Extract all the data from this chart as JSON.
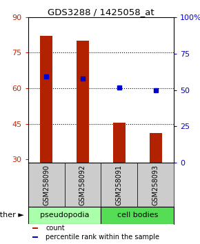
{
  "title": "GDS3288 / 1425058_at",
  "categories": [
    "GSM258090",
    "GSM258092",
    "GSM258091",
    "GSM258093"
  ],
  "bar_values": [
    82.0,
    80.0,
    45.5,
    41.0
  ],
  "bar_bottom": 28.5,
  "blue_dot_values": [
    65.0,
    64.0,
    60.2,
    59.2
  ],
  "bar_color": "#b22200",
  "blue_color": "#0000cc",
  "left_ylim": [
    28.5,
    90
  ],
  "left_yticks": [
    30,
    45,
    60,
    75,
    90
  ],
  "right_ylim": [
    0,
    100
  ],
  "right_yticks": [
    0,
    25,
    50,
    75,
    100
  ],
  "right_yticklabels": [
    "0",
    "25",
    "50",
    "75",
    "100%"
  ],
  "group_labels": [
    "pseudopodia",
    "cell bodies"
  ],
  "group_colors": [
    "#aaffaa",
    "#55dd55"
  ],
  "group_ranges": [
    [
      0,
      2
    ],
    [
      2,
      4
    ]
  ],
  "other_label": "other",
  "legend_items": [
    {
      "label": "count",
      "color": "#b22200"
    },
    {
      "label": "percentile rank within the sample",
      "color": "#0000cc"
    }
  ],
  "hlines": [
    45,
    60,
    75
  ],
  "left_tick_color": "#cc2200",
  "right_tick_color": "#0000cc",
  "bar_width": 0.35,
  "xtick_bg_color": "#cccccc",
  "figsize": [
    2.9,
    3.54
  ],
  "dpi": 100
}
